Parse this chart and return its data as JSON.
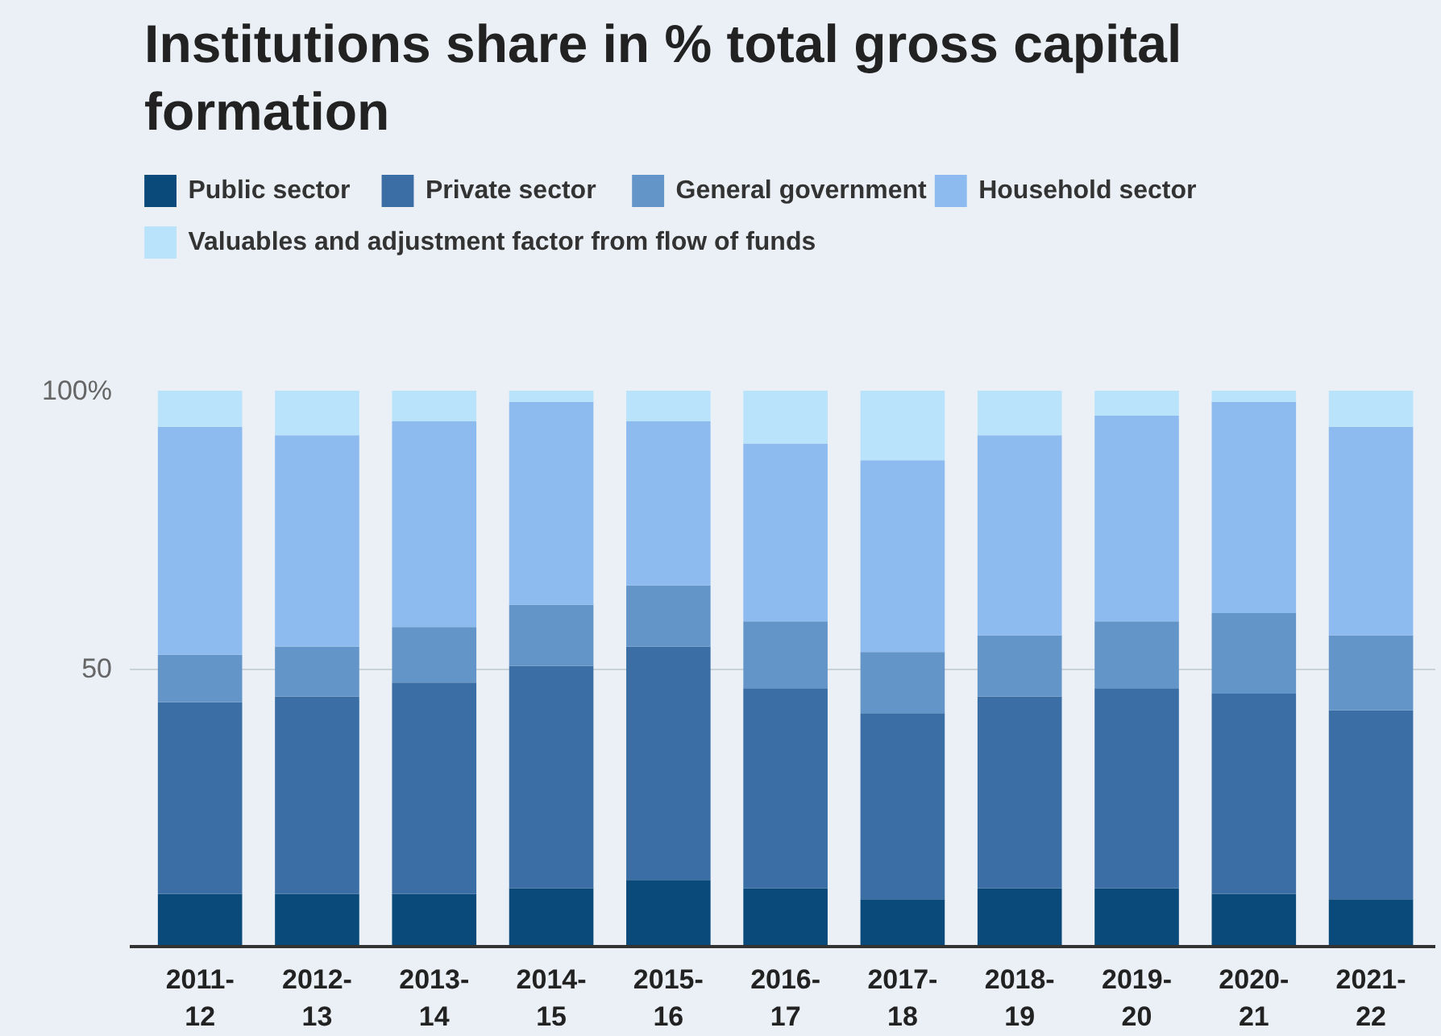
{
  "chart_data": {
    "type": "bar",
    "title": "Institutions share in % total gross capital formation",
    "stacked": true,
    "categories": [
      "2011-\n12",
      "2012-\n13",
      "2013-\n14",
      "2014-\n15",
      "2015-\n16",
      "2016-\n17",
      "2017-\n18",
      "2018-\n19",
      "2019-\n20",
      "2020-\n21",
      "2021-\n22"
    ],
    "series": [
      {
        "name": "Public sector",
        "color": "#0a4a7a",
        "values": [
          9.5,
          9.5,
          9.5,
          10.5,
          12,
          10.5,
          8.5,
          10.5,
          10.5,
          9.5,
          8.5
        ]
      },
      {
        "name": "Private sector",
        "color": "#3a6ea5",
        "values": [
          34.5,
          35.5,
          38,
          40,
          42,
          36,
          33.5,
          34.5,
          36,
          36,
          34
        ]
      },
      {
        "name": "General government",
        "color": "#6495c9",
        "values": [
          8.5,
          9,
          10,
          11,
          11,
          12,
          11,
          11,
          12,
          14.5,
          13.5
        ]
      },
      {
        "name": "Household sector",
        "color": "#8dbbf0",
        "values": [
          41,
          38,
          37,
          36.5,
          29.5,
          32,
          34.5,
          36,
          37,
          38,
          37.5
        ]
      },
      {
        "name": "Valuables and adjustment factor from flow of funds",
        "color": "#b8e3fb",
        "values": [
          6.5,
          8,
          5.5,
          2,
          5.5,
          9.5,
          12.5,
          8,
          4.5,
          2,
          6.5
        ]
      }
    ],
    "ylim": [
      0,
      100
    ],
    "yticks": [
      50,
      {
        "value": 100,
        "label": "100%"
      }
    ],
    "grid": "y",
    "legend": "top"
  }
}
